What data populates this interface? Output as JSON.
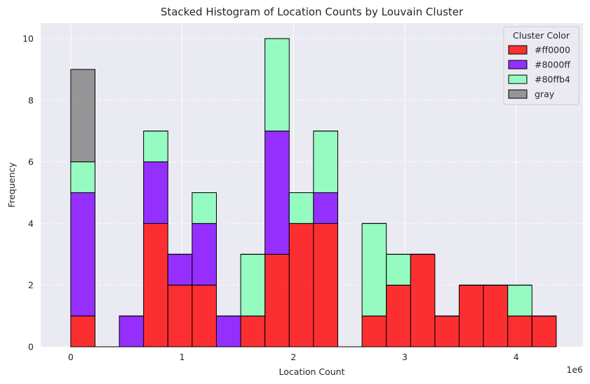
{
  "chart_data": {
    "type": "bar",
    "title": "Stacked Histogram of Location Counts by Louvain Cluster",
    "xlabel": "Location Count",
    "ylabel": "Frequency",
    "x_offset_label": "1e6",
    "xlim": [
      -0.27,
      4.6
    ],
    "ylim": [
      0,
      10.5
    ],
    "x_ticks": [
      0,
      1,
      2,
      3,
      4
    ],
    "y_ticks": [
      0,
      2,
      4,
      6,
      8,
      10
    ],
    "bin_edges": [
      0.0,
      0.218,
      0.436,
      0.654,
      0.872,
      1.09,
      1.308,
      1.526,
      1.744,
      1.962,
      2.18,
      2.398,
      2.616,
      2.834,
      3.052,
      3.27,
      3.488,
      3.706,
      3.924,
      4.142,
      4.36
    ],
    "grid": true,
    "legend": {
      "title": "Cluster Color",
      "placement": "top-right"
    },
    "series": [
      {
        "name": "#ff0000",
        "color": "#ff0000",
        "values": [
          1,
          0,
          0,
          4,
          2,
          2,
          0,
          1,
          3,
          4,
          4,
          0,
          1,
          2,
          3,
          1,
          2,
          2,
          1,
          1
        ]
      },
      {
        "name": "#8000ff",
        "color": "#8000ff",
        "values": [
          4,
          0,
          1,
          2,
          1,
          2,
          1,
          0,
          4,
          0,
          1,
          0,
          0,
          0,
          0,
          0,
          0,
          0,
          0,
          0
        ]
      },
      {
        "name": "#80ffb4",
        "color": "#80ffb4",
        "values": [
          1,
          0,
          0,
          1,
          0,
          1,
          0,
          2,
          3,
          1,
          2,
          0,
          3,
          1,
          0,
          0,
          0,
          0,
          1,
          0
        ]
      },
      {
        "name": "gray",
        "color": "#808080",
        "values": [
          3,
          0,
          0,
          0,
          0,
          0,
          0,
          0,
          0,
          0,
          0,
          0,
          0,
          0,
          0,
          0,
          0,
          0,
          0,
          0
        ]
      }
    ]
  }
}
